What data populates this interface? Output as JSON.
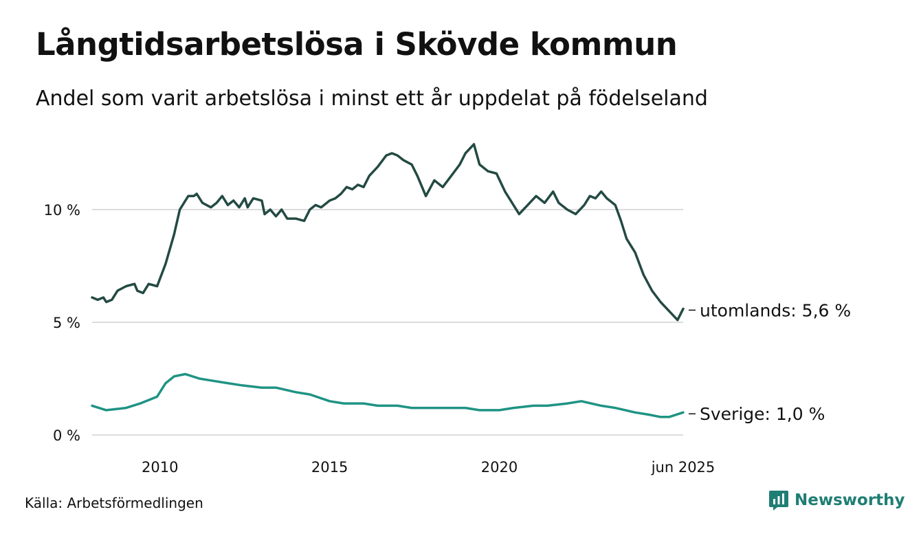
{
  "page": {
    "title": "Långtidsarbetslösa i Skövde kommun",
    "subtitle": "Andel som varit arbetslösa i minst ett år uppdelat på födelseland",
    "source": "Källa: Arbetsförmedlingen",
    "brand": "Newsworthy",
    "brand_icon": "newsworthy-logo-icon"
  },
  "chart_data": {
    "type": "line",
    "title": "Långtidsarbetslösa i Skövde kommun",
    "subtitle": "Andel som varit arbetslösa i minst ett år uppdelat på födelseland",
    "xlabel": "",
    "ylabel": "",
    "x_range": [
      "2008-01",
      "2025-06"
    ],
    "ylim": [
      0,
      13.5
    ],
    "y_ticks": [
      0,
      5,
      10
    ],
    "y_tick_labels": [
      "0 %",
      "5 %",
      "10 %"
    ],
    "x_ticks": [
      "2010-01",
      "2015-01",
      "2020-01",
      "2025-06"
    ],
    "x_tick_labels": [
      "2010",
      "2015",
      "2020",
      "jun 2025"
    ],
    "grid": "horizontal",
    "legend": "end-labels",
    "series": [
      {
        "name": "utomlands",
        "end_label": "utomlands: 5,6 %",
        "color": "#234a43",
        "points": [
          [
            "2008-01",
            6.1
          ],
          [
            "2008-03",
            6.0
          ],
          [
            "2008-05",
            6.1
          ],
          [
            "2008-06",
            5.9
          ],
          [
            "2008-08",
            6.0
          ],
          [
            "2008-10",
            6.4
          ],
          [
            "2009-01",
            6.6
          ],
          [
            "2009-04",
            6.7
          ],
          [
            "2009-05",
            6.4
          ],
          [
            "2009-07",
            6.3
          ],
          [
            "2009-09",
            6.7
          ],
          [
            "2009-12",
            6.6
          ],
          [
            "2010-03",
            7.6
          ],
          [
            "2010-06",
            8.9
          ],
          [
            "2010-08",
            10.0
          ],
          [
            "2010-11",
            10.6
          ],
          [
            "2011-01",
            10.6
          ],
          [
            "2011-02",
            10.7
          ],
          [
            "2011-04",
            10.3
          ],
          [
            "2011-07",
            10.1
          ],
          [
            "2011-09",
            10.3
          ],
          [
            "2011-11",
            10.6
          ],
          [
            "2012-01",
            10.2
          ],
          [
            "2012-03",
            10.4
          ],
          [
            "2012-05",
            10.1
          ],
          [
            "2012-07",
            10.5
          ],
          [
            "2012-08",
            10.1
          ],
          [
            "2012-10",
            10.5
          ],
          [
            "2013-01",
            10.4
          ],
          [
            "2013-02",
            9.8
          ],
          [
            "2013-04",
            10.0
          ],
          [
            "2013-06",
            9.7
          ],
          [
            "2013-08",
            10.0
          ],
          [
            "2013-10",
            9.6
          ],
          [
            "2014-01",
            9.6
          ],
          [
            "2014-04",
            9.5
          ],
          [
            "2014-06",
            10.0
          ],
          [
            "2014-08",
            10.2
          ],
          [
            "2014-10",
            10.1
          ],
          [
            "2015-01",
            10.4
          ],
          [
            "2015-03",
            10.5
          ],
          [
            "2015-05",
            10.7
          ],
          [
            "2015-07",
            11.0
          ],
          [
            "2015-09",
            10.9
          ],
          [
            "2015-11",
            11.1
          ],
          [
            "2016-01",
            11.0
          ],
          [
            "2016-03",
            11.5
          ],
          [
            "2016-06",
            11.9
          ],
          [
            "2016-09",
            12.4
          ],
          [
            "2016-11",
            12.5
          ],
          [
            "2017-01",
            12.4
          ],
          [
            "2017-03",
            12.2
          ],
          [
            "2017-06",
            12.0
          ],
          [
            "2017-08",
            11.5
          ],
          [
            "2017-11",
            10.6
          ],
          [
            "2018-02",
            11.3
          ],
          [
            "2018-05",
            11.0
          ],
          [
            "2018-08",
            11.5
          ],
          [
            "2018-11",
            12.0
          ],
          [
            "2019-01",
            12.5
          ],
          [
            "2019-04",
            12.9
          ],
          [
            "2019-06",
            12.0
          ],
          [
            "2019-09",
            11.7
          ],
          [
            "2019-12",
            11.6
          ],
          [
            "2020-03",
            10.8
          ],
          [
            "2020-06",
            10.2
          ],
          [
            "2020-08",
            9.8
          ],
          [
            "2020-11",
            10.2
          ],
          [
            "2021-02",
            10.6
          ],
          [
            "2021-05",
            10.3
          ],
          [
            "2021-08",
            10.8
          ],
          [
            "2021-10",
            10.3
          ],
          [
            "2022-01",
            10.0
          ],
          [
            "2022-04",
            9.8
          ],
          [
            "2022-07",
            10.2
          ],
          [
            "2022-09",
            10.6
          ],
          [
            "2022-11",
            10.5
          ],
          [
            "2023-01",
            10.8
          ],
          [
            "2023-03",
            10.5
          ],
          [
            "2023-06",
            10.2
          ],
          [
            "2023-08",
            9.5
          ],
          [
            "2023-10",
            8.7
          ],
          [
            "2024-01",
            8.1
          ],
          [
            "2024-04",
            7.1
          ],
          [
            "2024-07",
            6.4
          ],
          [
            "2024-10",
            5.9
          ],
          [
            "2025-01",
            5.5
          ],
          [
            "2025-04",
            5.1
          ],
          [
            "2025-06",
            5.6
          ]
        ]
      },
      {
        "name": "Sverige",
        "end_label": "Sverige: 1,0 %",
        "color": "#1f9384",
        "points": [
          [
            "2008-01",
            1.3
          ],
          [
            "2008-06",
            1.1
          ],
          [
            "2009-01",
            1.2
          ],
          [
            "2009-06",
            1.4
          ],
          [
            "2009-12",
            1.7
          ],
          [
            "2010-03",
            2.3
          ],
          [
            "2010-06",
            2.6
          ],
          [
            "2010-10",
            2.7
          ],
          [
            "2011-03",
            2.5
          ],
          [
            "2011-08",
            2.4
          ],
          [
            "2012-01",
            2.3
          ],
          [
            "2012-06",
            2.2
          ],
          [
            "2013-01",
            2.1
          ],
          [
            "2013-06",
            2.1
          ],
          [
            "2014-01",
            1.9
          ],
          [
            "2014-06",
            1.8
          ],
          [
            "2015-01",
            1.5
          ],
          [
            "2015-06",
            1.4
          ],
          [
            "2016-01",
            1.4
          ],
          [
            "2016-06",
            1.3
          ],
          [
            "2017-01",
            1.3
          ],
          [
            "2017-06",
            1.2
          ],
          [
            "2018-01",
            1.2
          ],
          [
            "2018-06",
            1.2
          ],
          [
            "2019-01",
            1.2
          ],
          [
            "2019-06",
            1.1
          ],
          [
            "2020-01",
            1.1
          ],
          [
            "2020-06",
            1.2
          ],
          [
            "2021-01",
            1.3
          ],
          [
            "2021-06",
            1.3
          ],
          [
            "2022-01",
            1.4
          ],
          [
            "2022-06",
            1.5
          ],
          [
            "2023-01",
            1.3
          ],
          [
            "2023-06",
            1.2
          ],
          [
            "2024-01",
            1.0
          ],
          [
            "2024-06",
            0.9
          ],
          [
            "2024-10",
            0.8
          ],
          [
            "2025-01",
            0.8
          ],
          [
            "2025-06",
            1.0
          ]
        ]
      }
    ]
  }
}
